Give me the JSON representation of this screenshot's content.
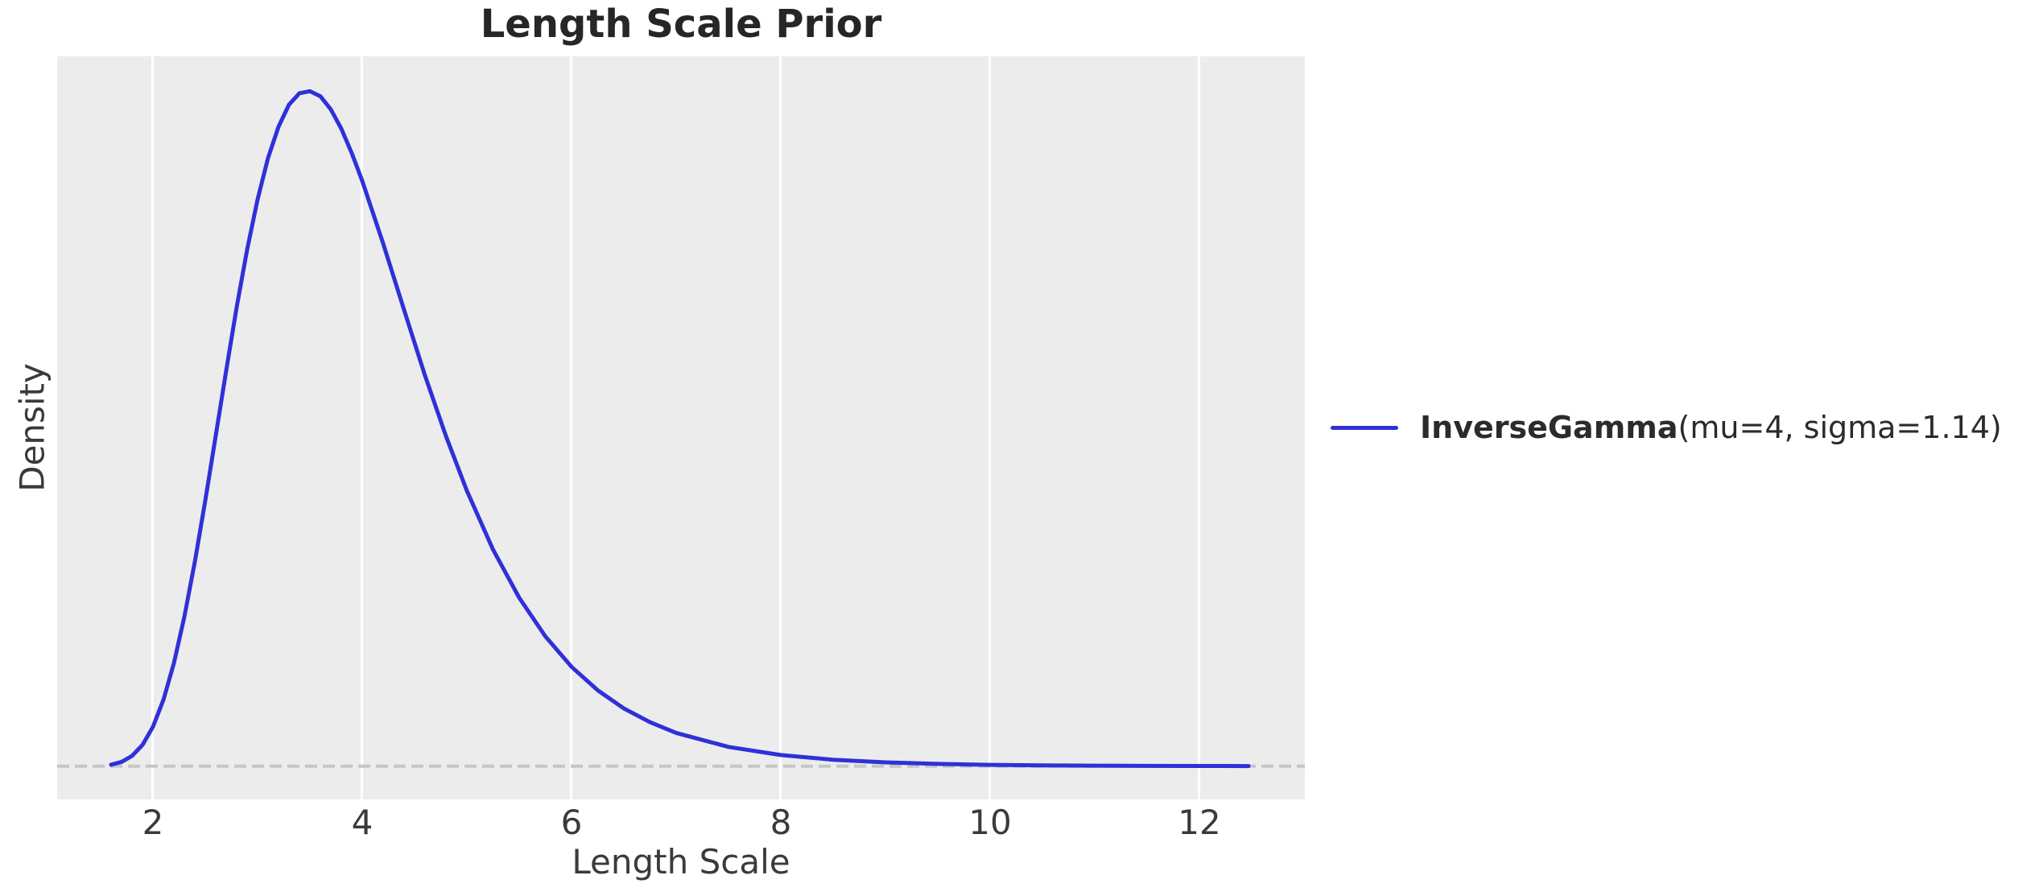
{
  "chart_data": {
    "type": "line",
    "title": "Length Scale Prior",
    "xlabel": "Length Scale",
    "ylabel": "Density",
    "xlim": [
      1.085,
      13.008
    ],
    "ylim": [
      -0.0206,
      0.4407
    ],
    "x_ticks": [
      2,
      4,
      6,
      8,
      10,
      12
    ],
    "x_tick_labels": [
      "2",
      "4",
      "6",
      "8",
      "10",
      "12"
    ],
    "y_ticks": [],
    "grid": "vertical-only",
    "legend_position": "center-right-outside",
    "baseline": {
      "y": 0,
      "style": "dashed",
      "color": "#c6c6c6",
      "dash": "15 7",
      "width": 4
    },
    "series": [
      {
        "name_bold": "InverseGamma",
        "name_rest": "(mu=4, sigma=1.14)",
        "color": "#3030d9",
        "line_width": 5,
        "x": [
          1.6,
          1.7,
          1.8,
          1.9,
          2.0,
          2.1,
          2.2,
          2.3,
          2.4,
          2.5,
          2.6,
          2.7,
          2.8,
          2.9,
          3.0,
          3.1,
          3.2,
          3.3,
          3.4,
          3.5,
          3.6,
          3.7,
          3.8,
          3.9,
          4.0,
          4.2,
          4.4,
          4.6,
          4.8,
          5.0,
          5.25,
          5.5,
          5.75,
          6.0,
          6.25,
          6.5,
          6.75,
          7.0,
          7.5,
          8.0,
          8.5,
          9.0,
          9.5,
          10.0,
          10.5,
          11.0,
          11.5,
          12.0,
          12.47
        ],
        "y": [
          0.00096,
          0.00268,
          0.00637,
          0.0132,
          0.02444,
          0.04117,
          0.0639,
          0.09272,
          0.1268,
          0.16487,
          0.2052,
          0.24556,
          0.2849,
          0.32072,
          0.3519,
          0.37763,
          0.397,
          0.41073,
          0.4178,
          0.41907,
          0.4159,
          0.40775,
          0.3958,
          0.38057,
          0.3634,
          0.32446,
          0.28327,
          0.24251,
          0.20493,
          0.171,
          0.13446,
          0.1046,
          0.08062,
          0.0617,
          0.04716,
          0.0359,
          0.02731,
          0.0207,
          0.012,
          0.00694,
          0.00406,
          0.0024,
          0.00143,
          0.00086,
          0.00053,
          0.00033,
          0.0002,
          0.00013,
          8e-05
        ]
      }
    ]
  },
  "colors": {
    "figure_bg": "#ffffff",
    "plot_bg": "#ececec",
    "gridline": "#ffffff",
    "title_text": "#262626",
    "axis_text": "#3a3a3a",
    "legend_text": "#2b2b2b"
  }
}
